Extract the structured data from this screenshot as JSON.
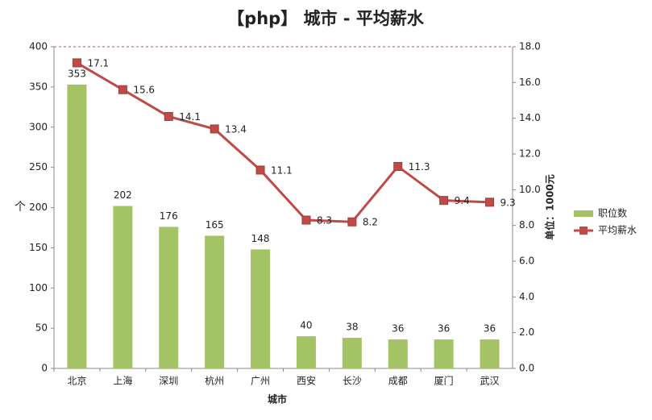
{
  "chart_data": {
    "type": "combo",
    "title": "【php】 城市 - 平均薪水",
    "x_label": "城市",
    "y_label": "个",
    "y2_label": "单位：1000元",
    "categories": [
      "北京",
      "上海",
      "深圳",
      "杭州",
      "广州",
      "西安",
      "长沙",
      "成都",
      "厦门",
      "武汉"
    ],
    "series": [
      {
        "name": "职位数",
        "type": "bar",
        "color": "#a4c365",
        "values": [
          353,
          202,
          176,
          165,
          148,
          40,
          38,
          36,
          36,
          36
        ]
      },
      {
        "name": "平均薪水",
        "type": "line",
        "axis": "y2",
        "color": "#be4b48",
        "values": [
          17.1,
          15.6,
          14.1,
          13.4,
          11.1,
          8.3,
          8.2,
          11.3,
          9.4,
          9.3
        ]
      }
    ],
    "ylim": [
      0,
      400
    ],
    "yticks": [
      0,
      50,
      100,
      150,
      200,
      250,
      300,
      350,
      400
    ],
    "y2lim": [
      0,
      18
    ],
    "y2ticks": [
      {
        "value": 0,
        "label": "0.0"
      },
      {
        "value": 2,
        "label": "2.0"
      },
      {
        "value": 4,
        "label": "4.0"
      },
      {
        "value": 6,
        "label": "6.0"
      },
      {
        "value": 8,
        "label": "8.0"
      },
      {
        "value": 10,
        "label": "10.0"
      },
      {
        "value": 12,
        "label": "12.0"
      },
      {
        "value": 14,
        "label": "14.0"
      },
      {
        "value": 16,
        "label": "16.0"
      },
      {
        "value": 18,
        "label": "18.0"
      }
    ],
    "legend": "right",
    "grid": false
  }
}
